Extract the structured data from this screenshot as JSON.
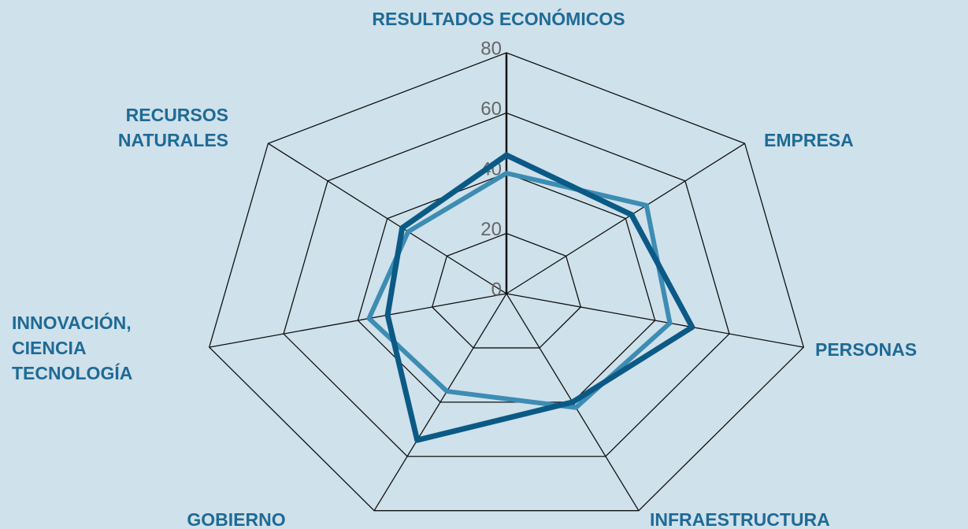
{
  "chart_data": {
    "type": "radar",
    "categories": [
      "RESULTADOS ECONÓMICOS",
      "EMPRESA",
      "PERSONAS",
      "INFRAESTRUCTURA",
      "GOBIERNO",
      "INNOVACIÓN, CIENCIA Y TECNOLOGÍA",
      "RECURSOS NATURALES"
    ],
    "series": [
      {
        "color": "#3d8cb3",
        "values": [
          40,
          47,
          44,
          42,
          36,
          37,
          33
        ]
      },
      {
        "color": "#0b5a86",
        "values": [
          46,
          42,
          50,
          40,
          54,
          32,
          35
        ]
      }
    ],
    "rlim": [
      0,
      80
    ],
    "rticks": [
      0,
      20,
      40,
      60,
      80
    ]
  }
}
